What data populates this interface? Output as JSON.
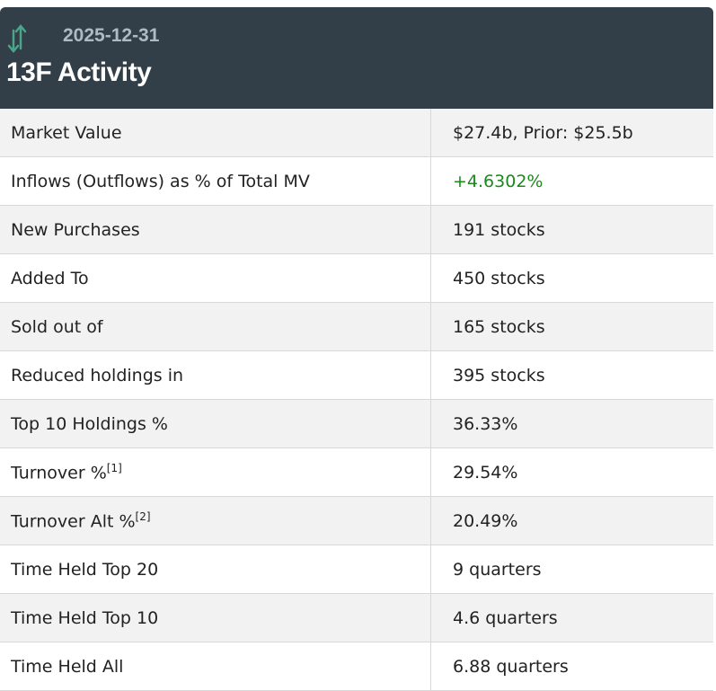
{
  "header": {
    "icon": "up-down-arrows-icon",
    "date": "2025-12-31",
    "title": "13F Activity"
  },
  "colors": {
    "header_bg": "#323f48",
    "positive": "#1a8a1a",
    "icon": "#4aa58a"
  },
  "rows": [
    {
      "label": "Market Value",
      "value": "$27.4b, Prior: $25.5b"
    },
    {
      "label": "Inflows (Outflows) as % of Total MV",
      "value": "+4.6302%"
    },
    {
      "label": "New Purchases",
      "value": "191 stocks"
    },
    {
      "label": "Added To",
      "value": "450 stocks"
    },
    {
      "label": "Sold out of",
      "value": "165 stocks"
    },
    {
      "label": "Reduced holdings in",
      "value": "395 stocks"
    },
    {
      "label": "Top 10 Holdings %",
      "value": "36.33%"
    },
    {
      "label": "Turnover %",
      "footnote": "[1]",
      "value": "29.54%"
    },
    {
      "label": "Turnover Alt %",
      "footnote": "[2]",
      "value": "20.49%"
    },
    {
      "label": "Time Held Top 20",
      "value": "9 quarters"
    },
    {
      "label": "Time Held Top 10",
      "value": "4.6 quarters"
    },
    {
      "label": "Time Held All",
      "value": "6.88 quarters"
    }
  ]
}
